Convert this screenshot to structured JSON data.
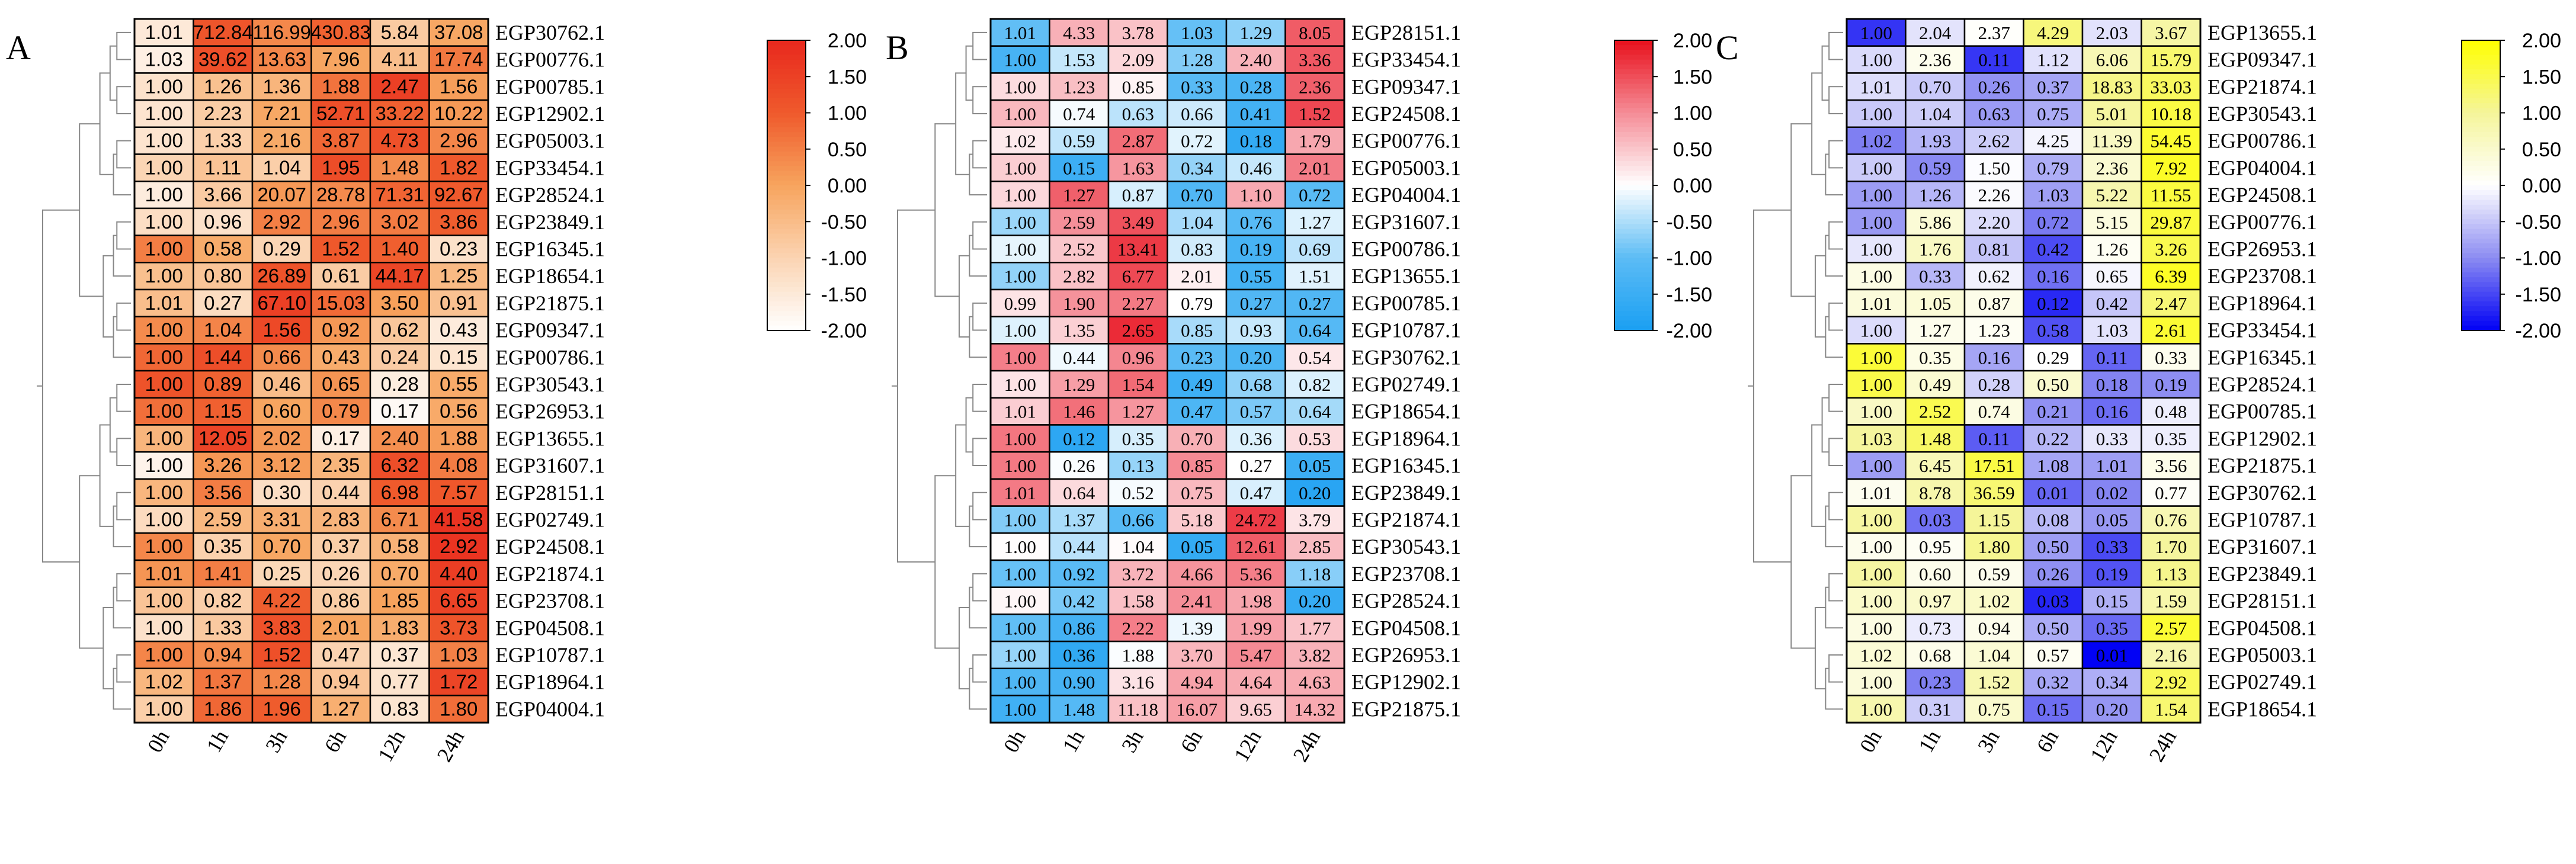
{
  "chart_data": [
    {
      "type": "heatmap",
      "panel_label": "A",
      "columns": [
        "0h",
        "1h",
        "3h",
        "6h",
        "12h",
        "24h"
      ],
      "rows": [
        {
          "label": "EGP30762.1",
          "values": [
            1.01,
            712.84,
            116.99,
            430.83,
            5.84,
            37.08
          ]
        },
        {
          "label": "EGP00776.1",
          "values": [
            1.03,
            39.62,
            13.63,
            7.96,
            4.11,
            17.74
          ]
        },
        {
          "label": "EGP00785.1",
          "values": [
            1.0,
            1.26,
            1.36,
            1.88,
            2.47,
            1.56
          ]
        },
        {
          "label": "EGP12902.1",
          "values": [
            1.0,
            2.23,
            7.21,
            52.71,
            33.22,
            10.22
          ]
        },
        {
          "label": "EGP05003.1",
          "values": [
            1.0,
            1.33,
            2.16,
            3.87,
            4.73,
            2.96
          ]
        },
        {
          "label": "EGP33454.1",
          "values": [
            1.0,
            1.11,
            1.04,
            1.95,
            1.48,
            1.82
          ]
        },
        {
          "label": "EGP28524.1",
          "values": [
            1.0,
            3.66,
            20.07,
            28.78,
            71.31,
            92.67
          ]
        },
        {
          "label": "EGP23849.1",
          "values": [
            1.0,
            0.96,
            2.92,
            2.96,
            3.02,
            3.86
          ]
        },
        {
          "label": "EGP16345.1",
          "values": [
            1.0,
            0.58,
            0.29,
            1.52,
            1.4,
            0.23
          ]
        },
        {
          "label": "EGP18654.1",
          "values": [
            1.0,
            0.8,
            26.89,
            0.61,
            44.17,
            1.25
          ]
        },
        {
          "label": "EGP21875.1",
          "values": [
            1.01,
            0.27,
            67.1,
            15.03,
            3.5,
            0.91
          ]
        },
        {
          "label": "EGP09347.1",
          "values": [
            1.0,
            1.04,
            1.56,
            0.92,
            0.62,
            0.43
          ]
        },
        {
          "label": "EGP00786.1",
          "values": [
            1.0,
            1.44,
            0.66,
            0.43,
            0.24,
            0.15
          ]
        },
        {
          "label": "EGP30543.1",
          "values": [
            1.0,
            0.89,
            0.46,
            0.65,
            0.28,
            0.55
          ]
        },
        {
          "label": "EGP26953.1",
          "values": [
            1.0,
            1.15,
            0.6,
            0.79,
            0.17,
            0.56
          ]
        },
        {
          "label": "EGP13655.1",
          "values": [
            1.0,
            12.05,
            2.02,
            0.17,
            2.4,
            1.88
          ]
        },
        {
          "label": "EGP31607.1",
          "values": [
            1.0,
            3.26,
            3.12,
            2.35,
            6.32,
            4.08
          ]
        },
        {
          "label": "EGP28151.1",
          "values": [
            1.0,
            3.56,
            0.3,
            0.44,
            6.98,
            7.57
          ]
        },
        {
          "label": "EGP02749.1",
          "values": [
            1.0,
            2.59,
            3.31,
            2.83,
            6.71,
            41.58
          ]
        },
        {
          "label": "EGP24508.1",
          "values": [
            1.0,
            0.35,
            0.7,
            0.37,
            0.58,
            2.92
          ]
        },
        {
          "label": "EGP21874.1",
          "values": [
            1.01,
            1.41,
            0.25,
            0.26,
            0.7,
            4.4
          ]
        },
        {
          "label": "EGP23708.1",
          "values": [
            1.0,
            0.82,
            4.22,
            0.86,
            1.85,
            6.65
          ]
        },
        {
          "label": "EGP04508.1",
          "values": [
            1.0,
            1.33,
            3.83,
            2.01,
            1.83,
            3.73
          ]
        },
        {
          "label": "EGP10787.1",
          "values": [
            1.0,
            0.94,
            1.52,
            0.47,
            0.37,
            1.03
          ]
        },
        {
          "label": "EGP18964.1",
          "values": [
            1.02,
            1.37,
            1.28,
            0.94,
            0.77,
            1.72
          ]
        },
        {
          "label": "EGP04004.1",
          "values": [
            1.0,
            1.86,
            1.96,
            1.27,
            0.83,
            1.8
          ]
        }
      ],
      "colorbar": {
        "ticks": [
          "2.00",
          "1.50",
          "1.00",
          "0.50",
          "0.00",
          "-0.50",
          "-1.00",
          "-1.50",
          "-2.00"
        ],
        "range": [
          -2,
          2
        ],
        "colors": [
          "#ffffff",
          "#fbd4b2",
          "#f7a45e",
          "#ef5a2c",
          "#e8281e"
        ]
      }
    },
    {
      "type": "heatmap",
      "panel_label": "B",
      "columns": [
        "0h",
        "1h",
        "3h",
        "6h",
        "12h",
        "24h"
      ],
      "rows": [
        {
          "label": "EGP28151.1",
          "values": [
            1.01,
            4.33,
            3.78,
            1.03,
            1.29,
            8.05
          ]
        },
        {
          "label": "EGP33454.1",
          "values": [
            1.0,
            1.53,
            2.09,
            1.28,
            2.4,
            3.36
          ]
        },
        {
          "label": "EGP09347.1",
          "values": [
            1.0,
            1.23,
            0.85,
            0.33,
            0.28,
            2.36
          ]
        },
        {
          "label": "EGP24508.1",
          "values": [
            1.0,
            0.74,
            0.63,
            0.66,
            0.41,
            1.52
          ]
        },
        {
          "label": "EGP00776.1",
          "values": [
            1.02,
            0.59,
            2.87,
            0.72,
            0.18,
            1.79
          ]
        },
        {
          "label": "EGP05003.1",
          "values": [
            1.0,
            0.15,
            1.63,
            0.34,
            0.46,
            2.01
          ]
        },
        {
          "label": "EGP04004.1",
          "values": [
            1.0,
            1.27,
            0.87,
            0.7,
            1.1,
            0.72
          ]
        },
        {
          "label": "EGP31607.1",
          "values": [
            1.0,
            2.59,
            3.49,
            1.04,
            0.76,
            1.27
          ]
        },
        {
          "label": "EGP00786.1",
          "values": [
            1.0,
            2.52,
            13.41,
            0.83,
            0.19,
            0.69
          ]
        },
        {
          "label": "EGP13655.1",
          "values": [
            1.0,
            2.82,
            6.77,
            2.01,
            0.55,
            1.51
          ]
        },
        {
          "label": "EGP00785.1",
          "values": [
            0.99,
            1.9,
            2.27,
            0.79,
            0.27,
            0.27
          ]
        },
        {
          "label": "EGP10787.1",
          "values": [
            1.0,
            1.35,
            2.65,
            0.85,
            0.93,
            0.64
          ]
        },
        {
          "label": "EGP30762.1",
          "values": [
            1.0,
            0.44,
            0.96,
            0.23,
            0.2,
            0.54
          ]
        },
        {
          "label": "EGP02749.1",
          "values": [
            1.0,
            1.29,
            1.54,
            0.49,
            0.68,
            0.82
          ]
        },
        {
          "label": "EGP18654.1",
          "values": [
            1.01,
            1.46,
            1.27,
            0.47,
            0.57,
            0.64
          ]
        },
        {
          "label": "EGP18964.1",
          "values": [
            1.0,
            0.12,
            0.35,
            0.7,
            0.36,
            0.53
          ]
        },
        {
          "label": "EGP16345.1",
          "values": [
            1.0,
            0.26,
            0.13,
            0.85,
            0.27,
            0.05
          ]
        },
        {
          "label": "EGP23849.1",
          "values": [
            1.01,
            0.64,
            0.52,
            0.75,
            0.47,
            0.2
          ]
        },
        {
          "label": "EGP21874.1",
          "values": [
            1.0,
            1.37,
            0.66,
            5.18,
            24.72,
            3.79
          ]
        },
        {
          "label": "EGP30543.1",
          "values": [
            1.0,
            0.44,
            1.04,
            0.05,
            12.61,
            2.85
          ]
        },
        {
          "label": "EGP23708.1",
          "values": [
            1.0,
            0.92,
            3.72,
            4.66,
            5.36,
            1.18
          ]
        },
        {
          "label": "EGP28524.1",
          "values": [
            1.0,
            0.42,
            1.58,
            2.41,
            1.98,
            0.2
          ]
        },
        {
          "label": "EGP04508.1",
          "values": [
            1.0,
            0.86,
            2.22,
            1.39,
            1.99,
            1.77
          ]
        },
        {
          "label": "EGP26953.1",
          "values": [
            1.0,
            0.36,
            1.88,
            3.7,
            5.47,
            3.82
          ]
        },
        {
          "label": "EGP12902.1",
          "values": [
            1.0,
            0.9,
            3.16,
            4.94,
            4.64,
            4.63
          ]
        },
        {
          "label": "EGP21875.1",
          "values": [
            1.0,
            1.48,
            11.18,
            16.07,
            9.65,
            14.32
          ]
        }
      ],
      "colorbar": {
        "ticks": [
          "2.00",
          "1.50",
          "1.00",
          "0.50",
          "0.00",
          "-0.50",
          "-1.00",
          "-1.50",
          "-2.00"
        ],
        "range": [
          -2,
          2
        ],
        "colors": [
          "#1a9ff2",
          "#5cbcf5",
          "#ffffff",
          "#f58c96",
          "#e8101c"
        ]
      }
    },
    {
      "type": "heatmap",
      "panel_label": "C",
      "columns": [
        "0h",
        "1h",
        "3h",
        "6h",
        "12h",
        "24h"
      ],
      "rows": [
        {
          "label": "EGP13655.1",
          "values": [
            1.0,
            2.04,
            2.37,
            4.29,
            2.03,
            3.67
          ]
        },
        {
          "label": "EGP09347.1",
          "values": [
            1.0,
            2.36,
            0.11,
            1.12,
            6.06,
            15.79
          ]
        },
        {
          "label": "EGP21874.1",
          "values": [
            1.01,
            0.7,
            0.26,
            0.37,
            18.83,
            33.03
          ]
        },
        {
          "label": "EGP30543.1",
          "values": [
            1.0,
            1.04,
            0.63,
            0.75,
            5.01,
            10.18
          ]
        },
        {
          "label": "EGP00786.1",
          "values": [
            1.02,
            1.93,
            2.62,
            4.25,
            11.39,
            54.45
          ]
        },
        {
          "label": "EGP04004.1",
          "values": [
            1.0,
            0.59,
            1.5,
            0.79,
            2.36,
            7.92
          ]
        },
        {
          "label": "EGP24508.1",
          "values": [
            1.0,
            1.26,
            2.26,
            1.03,
            5.22,
            11.55
          ]
        },
        {
          "label": "EGP00776.1",
          "values": [
            1.0,
            5.86,
            2.2,
            0.72,
            5.15,
            29.87
          ]
        },
        {
          "label": "EGP26953.1",
          "values": [
            1.0,
            1.76,
            0.81,
            0.42,
            1.26,
            3.26
          ]
        },
        {
          "label": "EGP23708.1",
          "values": [
            1.0,
            0.33,
            0.62,
            0.16,
            0.65,
            6.39
          ]
        },
        {
          "label": "EGP18964.1",
          "values": [
            1.01,
            1.05,
            0.87,
            0.12,
            0.42,
            2.47
          ]
        },
        {
          "label": "EGP33454.1",
          "values": [
            1.0,
            1.27,
            1.23,
            0.58,
            1.03,
            2.61
          ]
        },
        {
          "label": "EGP16345.1",
          "values": [
            1.0,
            0.35,
            0.16,
            0.29,
            0.11,
            0.33
          ]
        },
        {
          "label": "EGP28524.1",
          "values": [
            1.0,
            0.49,
            0.28,
            0.5,
            0.18,
            0.19
          ]
        },
        {
          "label": "EGP00785.1",
          "values": [
            1.0,
            2.52,
            0.74,
            0.21,
            0.16,
            0.48
          ]
        },
        {
          "label": "EGP12902.1",
          "values": [
            1.03,
            1.48,
            0.11,
            0.22,
            0.33,
            0.35
          ]
        },
        {
          "label": "EGP21875.1",
          "values": [
            1.0,
            6.45,
            17.51,
            1.08,
            1.01,
            3.56
          ]
        },
        {
          "label": "EGP30762.1",
          "values": [
            1.01,
            8.78,
            36.59,
            0.01,
            0.02,
            0.77
          ]
        },
        {
          "label": "EGP10787.1",
          "values": [
            1.0,
            0.03,
            1.15,
            0.08,
            0.05,
            0.76
          ]
        },
        {
          "label": "EGP31607.1",
          "values": [
            1.0,
            0.95,
            1.8,
            0.5,
            0.33,
            1.7
          ]
        },
        {
          "label": "EGP23849.1",
          "values": [
            1.0,
            0.6,
            0.59,
            0.26,
            0.19,
            1.13
          ]
        },
        {
          "label": "EGP28151.1",
          "values": [
            1.0,
            0.97,
            1.02,
            0.03,
            0.15,
            1.59
          ]
        },
        {
          "label": "EGP04508.1",
          "values": [
            1.0,
            0.73,
            0.94,
            0.5,
            0.35,
            2.57
          ]
        },
        {
          "label": "EGP05003.1",
          "values": [
            1.02,
            0.68,
            1.04,
            0.57,
            0.01,
            2.16
          ]
        },
        {
          "label": "EGP02749.1",
          "values": [
            1.0,
            0.23,
            1.52,
            0.32,
            0.34,
            2.92
          ]
        },
        {
          "label": "EGP18654.1",
          "values": [
            1.0,
            0.31,
            0.75,
            0.15,
            0.2,
            1.54
          ]
        }
      ],
      "colorbar": {
        "ticks": [
          "2.00",
          "1.50",
          "1.00",
          "0.50",
          "0.00",
          "-0.50",
          "-1.00",
          "-1.50",
          "-2.00"
        ],
        "range": [
          -2,
          2
        ],
        "colors": [
          "#0000f5",
          "#8c8cf2",
          "#ffffff",
          "#f5f59a",
          "#ffff00"
        ]
      }
    }
  ]
}
